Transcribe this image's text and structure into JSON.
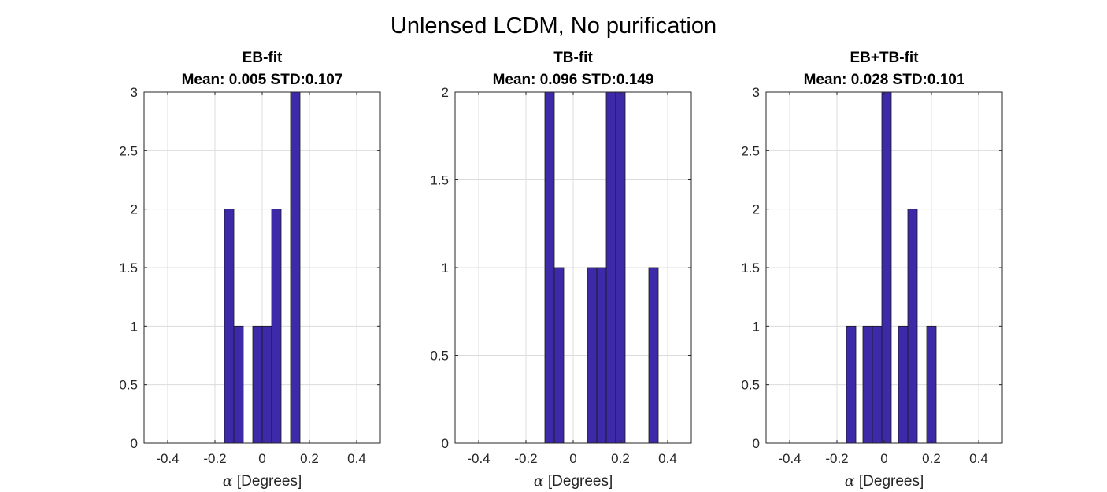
{
  "figure": {
    "suptitle": "Unlensed LCDM, No purification"
  },
  "chart_data": [
    {
      "type": "bar",
      "title": "EB-fit",
      "subtitle": "Mean: 0.005 STD:0.107",
      "xlabel_symbol": "α",
      "xlabel": "[Degrees]",
      "ylabel": "",
      "xlim": [
        -0.5,
        0.5
      ],
      "ylim": [
        0,
        3
      ],
      "xticks": [
        -0.4,
        -0.2,
        0,
        0.2,
        0.4
      ],
      "xtick_labels": [
        "-0.4",
        "-0.2",
        "0",
        "0.2",
        "0.4"
      ],
      "yticks": [
        0,
        0.5,
        1,
        1.5,
        2,
        2.5,
        3
      ],
      "ytick_labels": [
        "0",
        "0.5",
        "1",
        "1.5",
        "2",
        "2.5",
        "3"
      ],
      "grid": true,
      "bar_color": "#3d2aa8",
      "bins": [
        {
          "x0": -0.16,
          "x1": -0.12,
          "count": 2
        },
        {
          "x0": -0.12,
          "x1": -0.08,
          "count": 1
        },
        {
          "x0": -0.04,
          "x1": 0.0,
          "count": 1
        },
        {
          "x0": 0.0,
          "x1": 0.04,
          "count": 1
        },
        {
          "x0": 0.04,
          "x1": 0.08,
          "count": 2
        },
        {
          "x0": 0.12,
          "x1": 0.16,
          "count": 3
        }
      ]
    },
    {
      "type": "bar",
      "title": "TB-fit",
      "subtitle": "Mean: 0.096 STD:0.149",
      "xlabel_symbol": "α",
      "xlabel": "[Degrees]",
      "ylabel": "",
      "xlim": [
        -0.5,
        0.5
      ],
      "ylim": [
        0,
        2
      ],
      "xticks": [
        -0.4,
        -0.2,
        0,
        0.2,
        0.4
      ],
      "xtick_labels": [
        "-0.4",
        "-0.2",
        "0",
        "0.2",
        "0.4"
      ],
      "yticks": [
        0,
        0.5,
        1,
        1.5,
        2
      ],
      "ytick_labels": [
        "0",
        "0.5",
        "1",
        "1.5",
        "2"
      ],
      "grid": true,
      "bar_color": "#3d2aa8",
      "bins": [
        {
          "x0": -0.12,
          "x1": -0.08,
          "count": 2
        },
        {
          "x0": -0.08,
          "x1": -0.04,
          "count": 1
        },
        {
          "x0": 0.06,
          "x1": 0.1,
          "count": 1
        },
        {
          "x0": 0.1,
          "x1": 0.14,
          "count": 1
        },
        {
          "x0": 0.14,
          "x1": 0.18,
          "count": 2
        },
        {
          "x0": 0.18,
          "x1": 0.22,
          "count": 2
        },
        {
          "x0": 0.32,
          "x1": 0.36,
          "count": 1
        }
      ]
    },
    {
      "type": "bar",
      "title": "EB+TB-fit",
      "subtitle": "Mean: 0.028 STD:0.101",
      "xlabel_symbol": "α",
      "xlabel": "[Degrees]",
      "ylabel": "",
      "xlim": [
        -0.5,
        0.5
      ],
      "ylim": [
        0,
        3
      ],
      "xticks": [
        -0.4,
        -0.2,
        0,
        0.2,
        0.4
      ],
      "xtick_labels": [
        "-0.4",
        "-0.2",
        "0",
        "0.2",
        "0.4"
      ],
      "yticks": [
        0,
        0.5,
        1,
        1.5,
        2,
        2.5,
        3
      ],
      "ytick_labels": [
        "0",
        "0.5",
        "1",
        "1.5",
        "2",
        "2.5",
        "3"
      ],
      "grid": true,
      "bar_color": "#3d2aa8",
      "bins": [
        {
          "x0": -0.16,
          "x1": -0.12,
          "count": 1
        },
        {
          "x0": -0.09,
          "x1": -0.05,
          "count": 1
        },
        {
          "x0": -0.05,
          "x1": -0.01,
          "count": 1
        },
        {
          "x0": -0.01,
          "x1": 0.03,
          "count": 3
        },
        {
          "x0": 0.06,
          "x1": 0.1,
          "count": 1
        },
        {
          "x0": 0.1,
          "x1": 0.14,
          "count": 2
        },
        {
          "x0": 0.18,
          "x1": 0.22,
          "count": 1
        }
      ]
    }
  ]
}
